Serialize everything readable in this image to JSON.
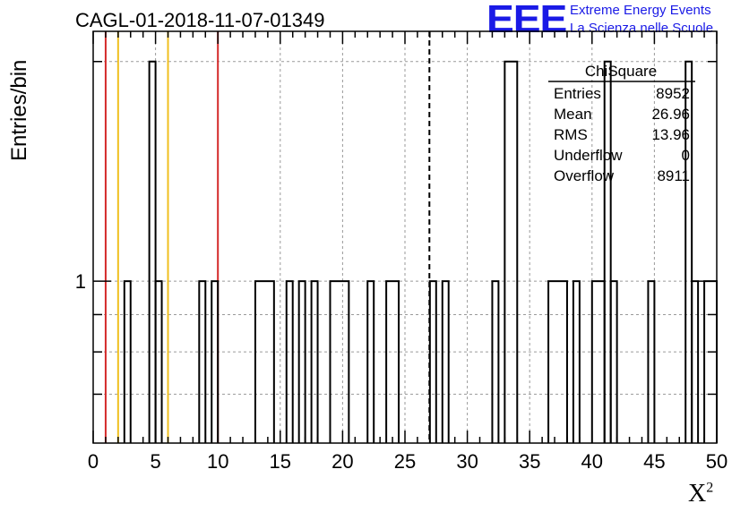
{
  "chart_data": {
    "type": "histogram",
    "title": "CAGL-01-2018-11-07-01349",
    "xlabel": "X",
    "xlabel_superscript": "2",
    "ylabel": "Entries/bin",
    "xlim": [
      0,
      50
    ],
    "ylim": [
      0.6,
      2.2
    ],
    "y_scale": "log",
    "grid": true,
    "bin_width": 0.5,
    "x_ticks": [
      "0",
      "5",
      "10",
      "15",
      "20",
      "25",
      "30",
      "35",
      "40",
      "45",
      "50"
    ],
    "y_tick_labels": [
      {
        "value": 1,
        "label": "1"
      }
    ],
    "bins": [
      {
        "x0": 2.5,
        "x1": 3.0,
        "y": 1
      },
      {
        "x0": 4.5,
        "x1": 5.0,
        "y": 2
      },
      {
        "x0": 5.0,
        "x1": 5.5,
        "y": 1
      },
      {
        "x0": 8.5,
        "x1": 9.0,
        "y": 1
      },
      {
        "x0": 9.5,
        "x1": 10.0,
        "y": 1
      },
      {
        "x0": 13.0,
        "x1": 14.5,
        "y": 1
      },
      {
        "x0": 15.5,
        "x1": 16.0,
        "y": 1
      },
      {
        "x0": 16.5,
        "x1": 17.0,
        "y": 1
      },
      {
        "x0": 17.5,
        "x1": 18.0,
        "y": 1
      },
      {
        "x0": 19.0,
        "x1": 20.5,
        "y": 1
      },
      {
        "x0": 22.0,
        "x1": 22.5,
        "y": 1
      },
      {
        "x0": 23.5,
        "x1": 24.5,
        "y": 1
      },
      {
        "x0": 27.0,
        "x1": 27.5,
        "y": 1
      },
      {
        "x0": 28.0,
        "x1": 28.5,
        "y": 1
      },
      {
        "x0": 32.0,
        "x1": 32.5,
        "y": 1
      },
      {
        "x0": 33.0,
        "x1": 34.0,
        "y": 2
      },
      {
        "x0": 36.5,
        "x1": 38.0,
        "y": 1
      },
      {
        "x0": 38.5,
        "x1": 39.0,
        "y": 1
      },
      {
        "x0": 40.0,
        "x1": 41.0,
        "y": 1
      },
      {
        "x0": 41.0,
        "x1": 41.5,
        "y": 2
      },
      {
        "x0": 41.5,
        "x1": 42.0,
        "y": 1
      },
      {
        "x0": 44.5,
        "x1": 45.0,
        "y": 1
      },
      {
        "x0": 47.5,
        "x1": 48.0,
        "y": 2
      },
      {
        "x0": 48.0,
        "x1": 48.5,
        "y": 1
      },
      {
        "x0": 49.0,
        "x1": 50.0,
        "y": 1
      }
    ],
    "vertical_lines": [
      {
        "x": 1.0,
        "color": "#d42a2a",
        "style": "solid"
      },
      {
        "x": 2.0,
        "color": "#f0c020",
        "style": "solid"
      },
      {
        "x": 6.0,
        "color": "#f0c020",
        "style": "solid"
      },
      {
        "x": 10.0,
        "color": "#d42a2a",
        "style": "solid"
      },
      {
        "x": 26.96,
        "color": "#000000",
        "style": "dashed"
      }
    ],
    "stats_box": {
      "title": "ChiSquare",
      "rows": [
        {
          "label": "Entries",
          "value": "8952"
        },
        {
          "label": "Mean",
          "value": "26.96"
        },
        {
          "label": "RMS",
          "value": "13.96"
        },
        {
          "label": "Underflow",
          "value": "0"
        },
        {
          "label": "Overflow",
          "value": "8911"
        }
      ]
    }
  },
  "logo": {
    "mark": "EEE",
    "line1": "Extreme Energy Events",
    "line2": "La Scienza nelle Scuole",
    "color": "#1a1ae6"
  }
}
